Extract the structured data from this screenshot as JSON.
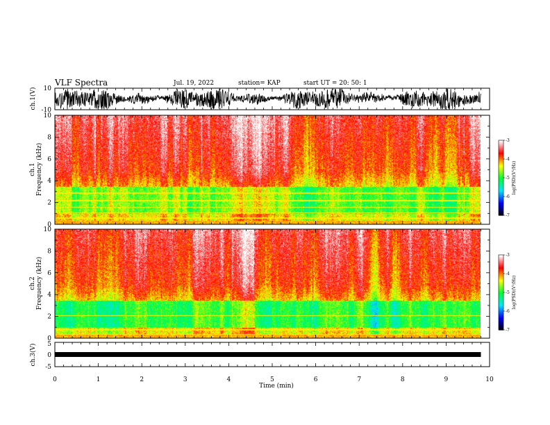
{
  "header": {
    "title": "VLF Spectra",
    "date": "Jul. 19, 2022",
    "station": "station= KAP",
    "start": "start  UT =   20: 50: 1"
  },
  "chart_data": [
    {
      "type": "line",
      "panel": "ch1-waveform",
      "ylabel": "ch.1(V)",
      "ylim": [
        -10,
        10
      ],
      "yticks": [
        "10",
        "-10"
      ],
      "xlim": [
        0,
        10
      ],
      "color": "#000000"
    },
    {
      "type": "heatmap",
      "panel": "ch1-spectrogram",
      "ylabel_line1": "ch.1",
      "ylabel_line2": "Frequency (kHz)",
      "ylim": [
        0,
        10
      ],
      "yticks": [
        "0",
        "2",
        "4",
        "6",
        "8",
        "10"
      ],
      "xlim": [
        0,
        9.8
      ],
      "colorbar": {
        "range": [
          -7,
          -3
        ],
        "ticks": [
          "-3",
          "-4",
          "-5",
          "-6",
          "-7"
        ],
        "label": "log(PSD)(V²/Hz)"
      },
      "colormap": [
        "#000000",
        "#0000ff",
        "#00e5ff",
        "#00ff33",
        "#ffff00",
        "#ff0000",
        "#ffffff"
      ]
    },
    {
      "type": "heatmap",
      "panel": "ch2-spectrogram",
      "ylabel_line1": "ch.2",
      "ylabel_line2": "Frequency (kHz)",
      "ylim": [
        0,
        10
      ],
      "yticks": [
        "0",
        "2",
        "4",
        "6",
        "8",
        "10"
      ],
      "xlim": [
        0,
        9.8
      ],
      "colorbar": {
        "range": [
          -7,
          -3
        ],
        "ticks": [
          "-3",
          "-4",
          "-5",
          "-6",
          "-7"
        ],
        "label": "log(PSD)(V²/Hz)"
      },
      "colormap": [
        "#000000",
        "#0000ff",
        "#00e5ff",
        "#00ff33",
        "#ffff00",
        "#ff0000",
        "#ffffff"
      ]
    },
    {
      "type": "line",
      "panel": "ch3-waveform",
      "ylabel": "ch.3(V)",
      "ylim": [
        -5,
        5
      ],
      "yticks": [
        "5",
        "0",
        "-5"
      ],
      "xlim": [
        0,
        10
      ],
      "color": "#000000"
    }
  ],
  "xaxis": {
    "label": "Time (min)",
    "ticks": [
      "0",
      "1",
      "2",
      "3",
      "4",
      "5",
      "6",
      "7",
      "8",
      "9",
      "10"
    ]
  }
}
